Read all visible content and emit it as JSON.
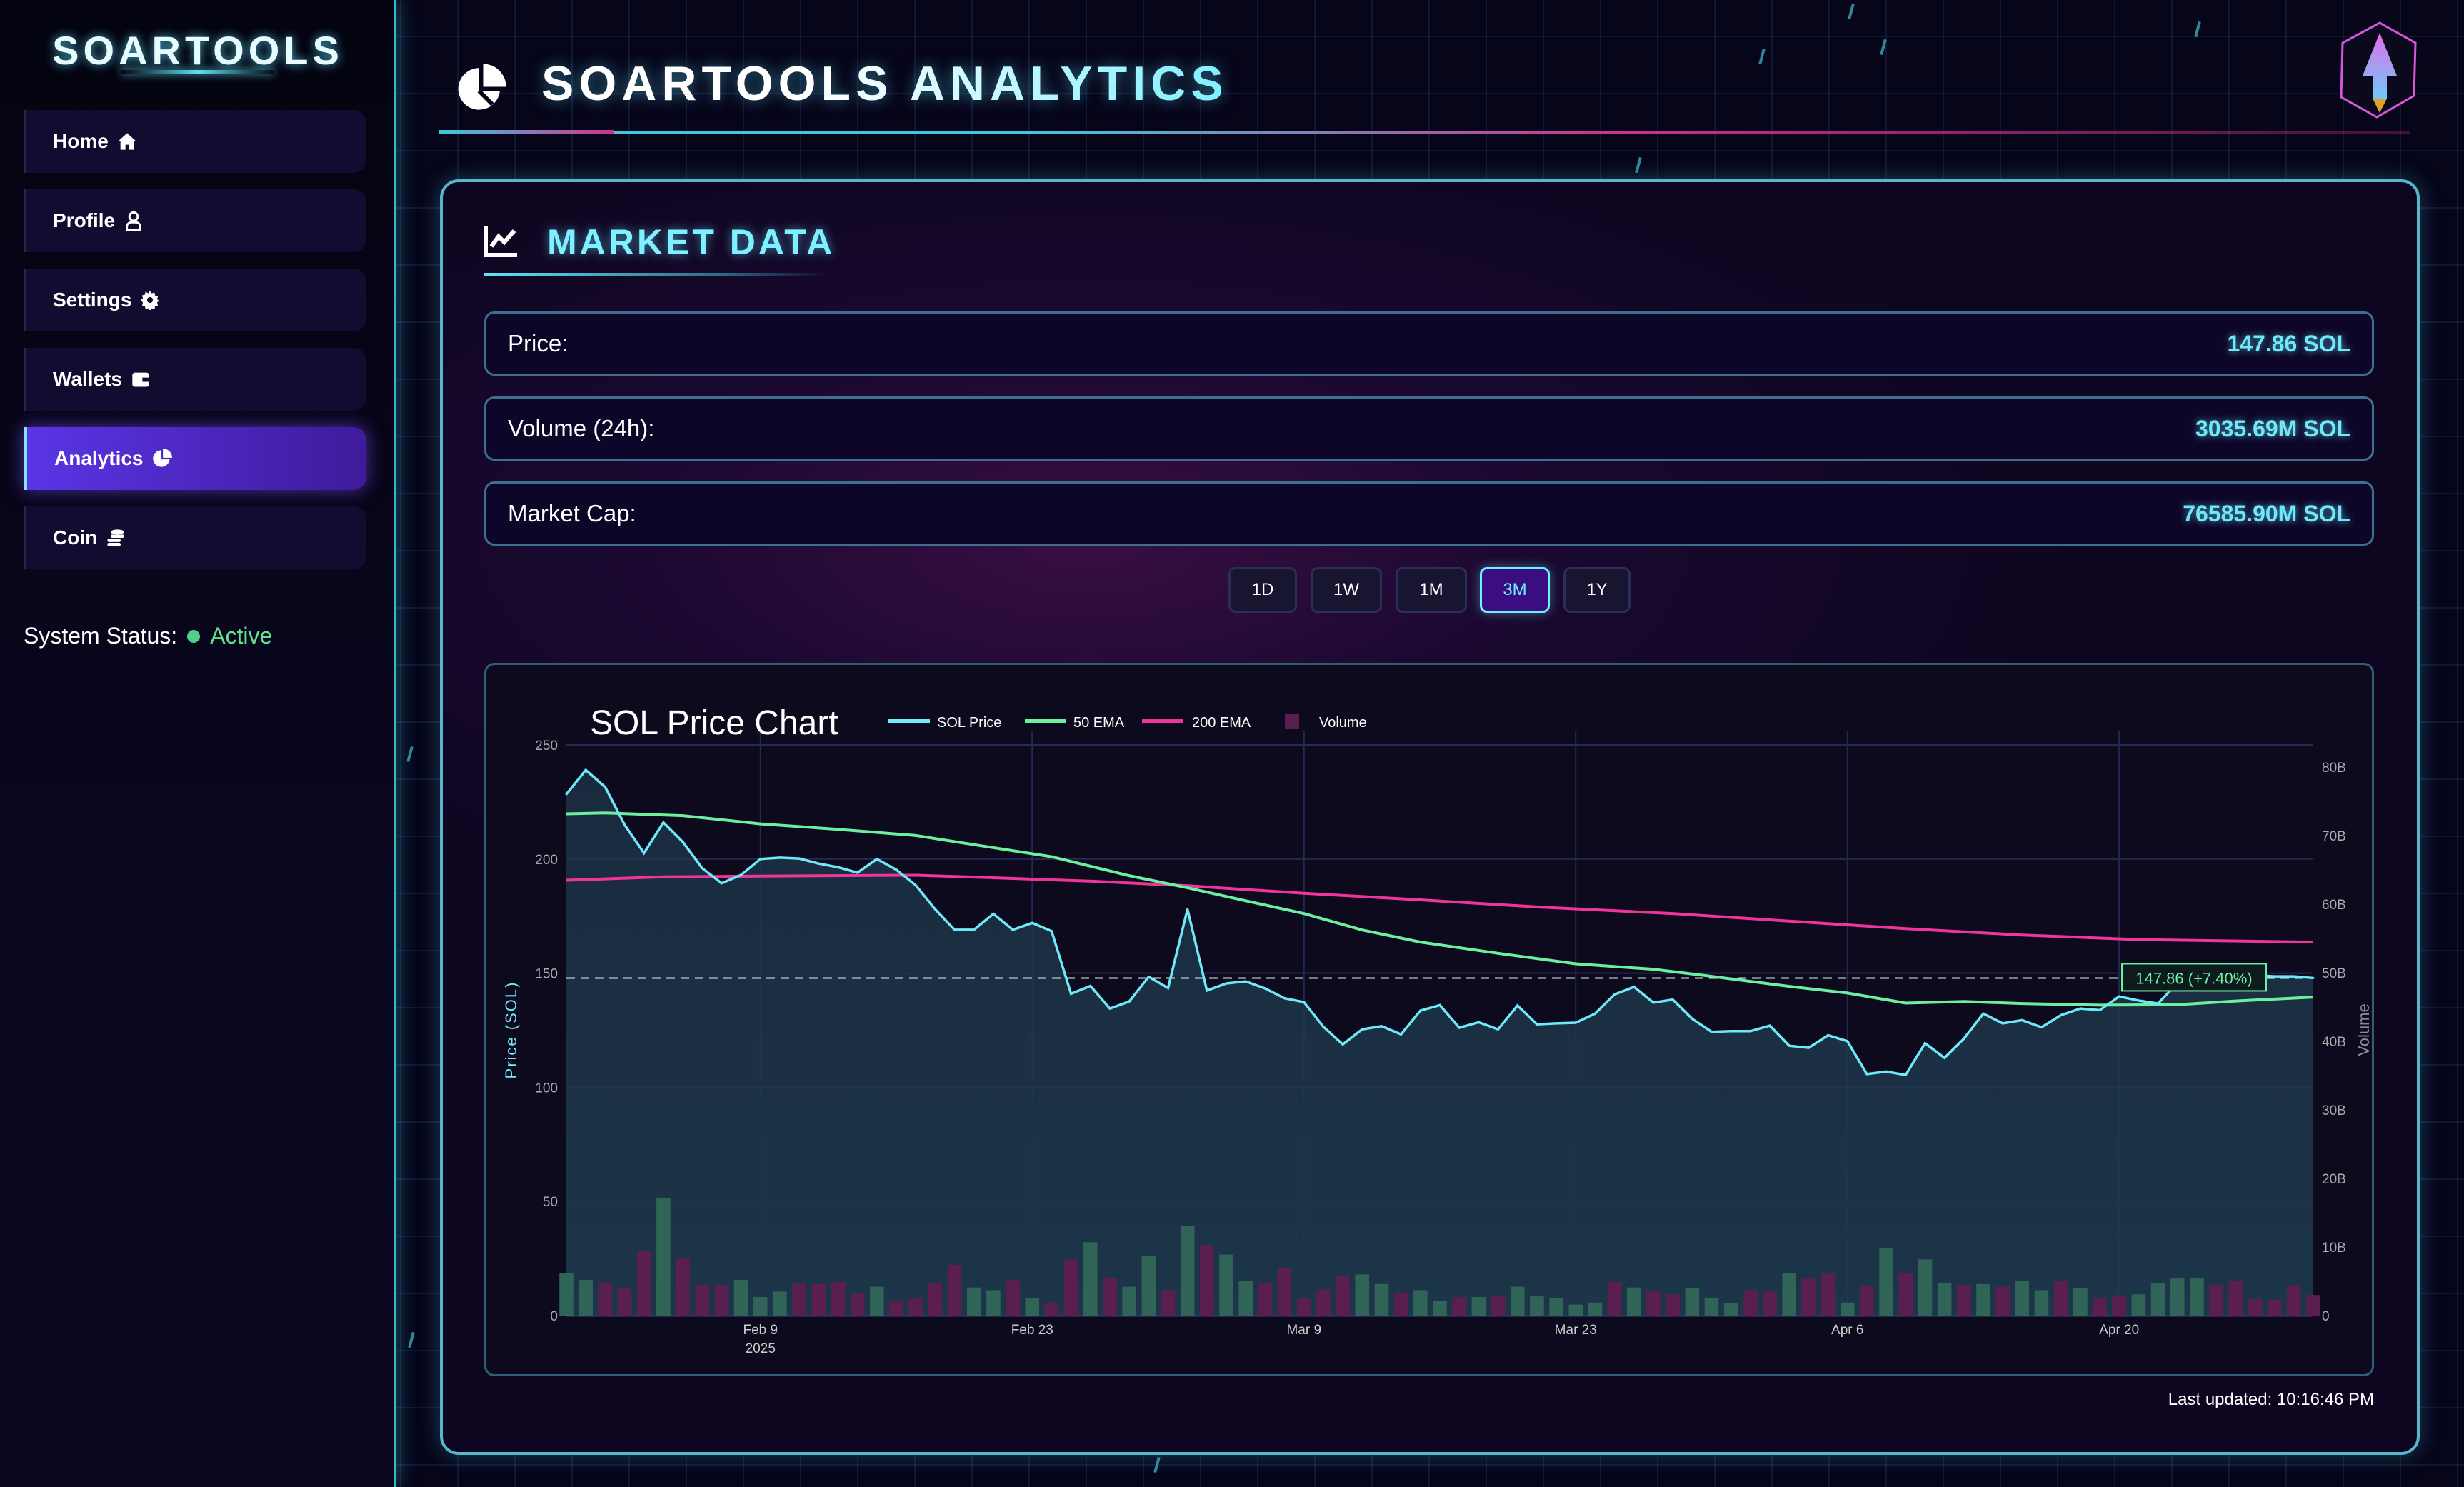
{
  "sidebar": {
    "logo": "SOARTOOLS",
    "items": [
      {
        "label": "Home",
        "icon": "home-icon"
      },
      {
        "label": "Profile",
        "icon": "user-icon"
      },
      {
        "label": "Settings",
        "icon": "gear-icon"
      },
      {
        "label": "Wallets",
        "icon": "wallet-icon"
      },
      {
        "label": "Analytics",
        "icon": "pie-chart-icon",
        "active": true
      },
      {
        "label": "Coin",
        "icon": "coins-icon"
      }
    ],
    "status_label": "System Status:",
    "status_value": "Active"
  },
  "header": {
    "title": "SOARTOOLS ANALYTICS"
  },
  "market": {
    "title": "MARKET DATA",
    "rows": [
      {
        "label": "Price:",
        "value": "147.86 SOL"
      },
      {
        "label": "Volume (24h):",
        "value": "3035.69M SOL"
      },
      {
        "label": "Market Cap:",
        "value": "76585.90M SOL"
      }
    ],
    "timeframes": [
      "1D",
      "1W",
      "1M",
      "3M",
      "1Y"
    ],
    "active_timeframe": "3M",
    "last_updated": "Last updated: 10:16:46 PM"
  },
  "colors": {
    "accent": "#6fe8f8",
    "price": "#6fe8f8",
    "ema50": "#6cf0a0",
    "ema200": "#f0359a",
    "vol_up": "#2f6457",
    "vol_down": "#5a1f4e"
  },
  "chart_data": {
    "type": "line",
    "title": "SOL Price Chart",
    "legend": [
      "SOL Price",
      "50 EMA",
      "200 EMA",
      "Volume"
    ],
    "legend_position": "top-left",
    "ylabel": "Price (SOL)",
    "y2label": "Volume",
    "ylim": [
      0,
      250
    ],
    "y2lim": [
      0,
      80
    ],
    "yticks": [
      "0",
      "50",
      "100",
      "150",
      "200",
      "250"
    ],
    "y2ticks": [
      "0",
      "10B",
      "20B",
      "30B",
      "40B",
      "50B",
      "60B",
      "70B",
      "80B"
    ],
    "x_start": "2025-01-30",
    "x_end": "2025-04-30",
    "xticks": [
      {
        "day": 10,
        "label": "Feb 9",
        "sub": "2025"
      },
      {
        "day": 24,
        "label": "Feb 23"
      },
      {
        "day": 38,
        "label": "Mar 9"
      },
      {
        "day": 52,
        "label": "Mar 23"
      },
      {
        "day": 66,
        "label": "Apr 6"
      },
      {
        "day": 80,
        "label": "Apr 20"
      }
    ],
    "annotation": "147.86 (+7.40%)",
    "last_price": 147.86,
    "price": [
      228.4,
      239,
      231.5,
      215,
      202.6,
      216,
      207.5,
      196,
      189.4,
      193,
      200,
      200.6,
      200.2,
      198,
      196.4,
      194,
      200,
      195.3,
      188.5,
      178,
      169,
      169,
      176,
      169,
      172,
      168.4,
      141,
      144.4,
      134.5,
      137.6,
      148.4,
      143.5,
      178,
      142.4,
      145.5,
      146.4,
      143.3,
      139,
      137.3,
      126.5,
      118.8,
      125.4,
      126.8,
      123.2,
      133.6,
      136,
      126.1,
      128.5,
      125.4,
      135.8,
      127.6,
      128,
      128.3,
      132.3,
      140.7,
      144,
      137.1,
      138.4,
      130,
      124.3,
      124.6,
      124.6,
      127,
      118.2,
      117.3,
      122.8,
      120.2,
      105.8,
      106.9,
      105.4,
      119.3,
      112.9,
      121.3,
      132.3,
      128,
      129.4,
      126.3,
      131.6,
      134.5,
      133.8,
      139.8,
      138,
      136.7,
      145.7,
      151.2,
      152.3,
      150.8,
      149,
      148.6,
      148.6,
      147.86
    ],
    "ema50": [
      [
        0,
        219.8
      ],
      [
        2,
        220.2
      ],
      [
        6,
        219
      ],
      [
        10,
        215.4
      ],
      [
        14,
        213
      ],
      [
        18,
        210.3
      ],
      [
        21,
        206.3
      ],
      [
        25,
        201
      ],
      [
        29,
        192.7
      ],
      [
        32,
        187.4
      ],
      [
        35,
        181.7
      ],
      [
        38,
        176.1
      ],
      [
        41,
        168.9
      ],
      [
        44,
        163.6
      ],
      [
        48,
        158.7
      ],
      [
        52,
        154.1
      ],
      [
        56,
        151.7
      ],
      [
        59,
        148.6
      ],
      [
        63,
        144.2
      ],
      [
        66,
        141.3
      ],
      [
        69,
        136.9
      ],
      [
        72,
        137.6
      ],
      [
        75,
        136.7
      ],
      [
        79,
        136
      ],
      [
        83,
        136.2
      ],
      [
        86,
        137.8
      ],
      [
        90,
        139.5
      ]
    ],
    "ema200": [
      [
        0,
        190.7
      ],
      [
        5,
        192.2
      ],
      [
        10,
        192.5
      ],
      [
        18,
        192.9
      ],
      [
        22,
        191.8
      ],
      [
        27,
        190.3
      ],
      [
        32,
        188.3
      ],
      [
        38,
        185
      ],
      [
        44,
        182.1
      ],
      [
        50,
        179
      ],
      [
        57,
        176.1
      ],
      [
        63,
        172.8
      ],
      [
        69,
        169.5
      ],
      [
        75,
        166.7
      ],
      [
        81,
        164.7
      ],
      [
        90,
        163.6
      ]
    ],
    "volume_b": [
      6.2,
      5.2,
      4.7,
      4.1,
      9.5,
      17.2,
      8.4,
      4.5,
      4.5,
      5.2,
      2.7,
      3.5,
      4.8,
      4.6,
      4.9,
      3.2,
      4.2,
      2.1,
      2.5,
      4.8,
      7.4,
      4.1,
      3.7,
      5.2,
      2.5,
      1.8,
      8.2,
      10.7,
      5.5,
      4.2,
      8.7,
      3.7,
      13.1,
      10.3,
      8.9,
      5.0,
      4.8,
      7.0,
      2.5,
      3.8,
      5.8,
      6.0,
      4.6,
      3.3,
      3.7,
      2.1,
      2.7,
      2.7,
      2.9,
      4.2,
      2.8,
      2.6,
      1.6,
      1.9,
      4.9,
      4.1,
      3.5,
      3.1,
      4.0,
      2.6,
      1.8,
      3.7,
      3.5,
      6.2,
      5.4,
      6.1,
      1.9,
      4.4,
      9.9,
      6.2,
      8.2,
      4.8,
      4.5,
      4.6,
      4.2,
      5.0,
      3.7,
      5.0,
      4.0,
      2.5,
      2.8,
      3.1,
      4.7,
      5.4,
      5.4,
      4.5,
      5.0,
      2.4,
      2.3,
      4.4,
      3.0
    ],
    "volume_up": "ggmmmgmmmgggmmmmgmmmmggmgmmgmggmgmggmmmmmggmggmgmgggggmgmmgggmmgmmgmgmggmgmggmgmmggggmmmmm"
  }
}
